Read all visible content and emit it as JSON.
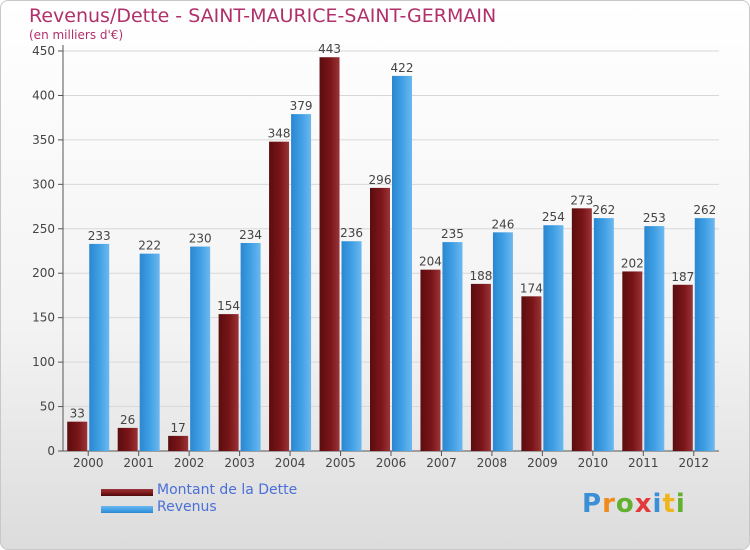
{
  "chart_data": {
    "type": "bar",
    "title": "Revenus/Dette - SAINT-MAURICE-SAINT-GERMAIN",
    "subtitle": "(en milliers d'€)",
    "categories": [
      "2000",
      "2001",
      "2002",
      "2003",
      "2004",
      "2005",
      "2006",
      "2007",
      "2008",
      "2009",
      "2010",
      "2011",
      "2012"
    ],
    "series": [
      {
        "name": "Montant de la Dette",
        "color": "#7a1518",
        "values": [
          33,
          26,
          17,
          154,
          348,
          443,
          296,
          204,
          188,
          174,
          273,
          202,
          187
        ]
      },
      {
        "name": "Revenus",
        "color": "#3f9fe4",
        "values": [
          233,
          222,
          230,
          234,
          379,
          236,
          422,
          235,
          246,
          254,
          262,
          253,
          262
        ]
      }
    ],
    "ylim": [
      0,
      450
    ],
    "yticks": [
      0,
      50,
      100,
      150,
      200,
      250,
      300,
      350,
      400,
      450
    ],
    "grid": true,
    "legend_position": "bottom-left"
  },
  "branding": {
    "logo_text": "Proxiti",
    "logo_letters": [
      {
        "ch": "P",
        "color": "#3a8fd6"
      },
      {
        "ch": "r",
        "color": "#f08a1c"
      },
      {
        "ch": "o",
        "color": "#62b02e"
      },
      {
        "ch": "x",
        "color": "#e23a3a"
      },
      {
        "ch": "i",
        "color": "#3a8fd6"
      },
      {
        "ch": "t",
        "color": "#f0b51c"
      },
      {
        "ch": "i",
        "color": "#62b02e"
      }
    ]
  }
}
